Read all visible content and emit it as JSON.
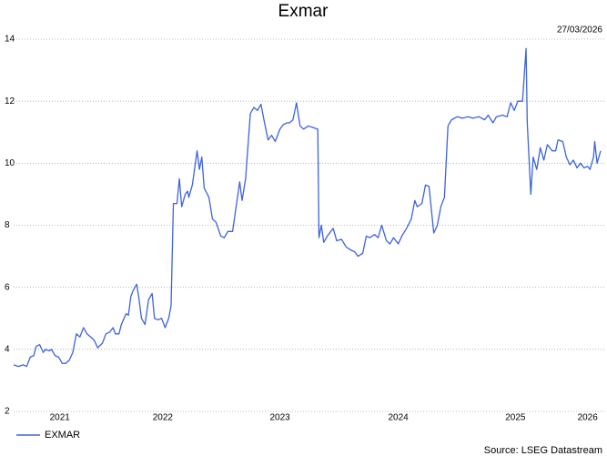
{
  "chart_data": {
    "type": "line",
    "title": "Exmar",
    "date": "27/03/2026",
    "source": "Source: LSEG Datastream",
    "x": [
      2021.27,
      2021.31,
      2021.35,
      2021.38,
      2021.41,
      2021.44,
      2021.46,
      2021.49,
      2021.52,
      2021.54,
      2021.57,
      2021.59,
      2021.62,
      2021.65,
      2021.68,
      2021.71,
      2021.74,
      2021.77,
      2021.8,
      2021.83,
      2021.86,
      2021.89,
      2021.92,
      2021.95,
      2021.98,
      2022.02,
      2022.05,
      2022.08,
      2022.11,
      2022.13,
      2022.16,
      2022.18,
      2022.22,
      2022.24,
      2022.26,
      2022.28,
      2022.31,
      2022.33,
      2022.35,
      2022.38,
      2022.41,
      2022.44,
      2022.46,
      2022.49,
      2022.52,
      2022.55,
      2022.58,
      2022.6,
      2022.62,
      2022.65,
      2022.67,
      2022.69,
      2022.72,
      2022.74,
      2022.75,
      2022.78,
      2022.82,
      2022.84,
      2022.86,
      2022.88,
      2022.92,
      2022.95,
      2022.98,
      2023.02,
      2023.05,
      2023.08,
      2023.12,
      2023.18,
      2023.2,
      2023.23,
      2023.27,
      2023.3,
      2023.33,
      2023.36,
      2023.39,
      2023.42,
      2023.45,
      2023.48,
      2023.52,
      2023.55,
      2023.58,
      2023.6,
      2023.63,
      2023.66,
      2023.69,
      2023.72,
      2023.76,
      2023.8,
      2023.84,
      2023.85,
      2023.87,
      2023.89,
      2023.92,
      2023.97,
      2024.0,
      2024.04,
      2024.08,
      2024.12,
      2024.15,
      2024.18,
      2024.22,
      2024.25,
      2024.28,
      2024.32,
      2024.35,
      2024.38,
      2024.42,
      2024.45,
      2024.48,
      2024.52,
      2024.55,
      2024.59,
      2024.63,
      2024.66,
      2024.68,
      2024.72,
      2024.75,
      2024.78,
      2024.82,
      2024.85,
      2024.88,
      2024.91,
      2024.94,
      2024.97,
      2025.02,
      2025.06,
      2025.11,
      2025.15,
      2025.2,
      2025.25,
      2025.28,
      2025.32,
      2025.35,
      2025.4,
      2025.44,
      2025.47,
      2025.5,
      2025.53,
      2025.57,
      2025.6,
      2025.61,
      2025.64,
      2025.66,
      2025.69,
      2025.72,
      2025.75,
      2025.78,
      2025.82,
      2025.85,
      2025.87,
      2025.91,
      2025.94,
      2025.97,
      2026.0,
      2026.03,
      2026.06,
      2026.09,
      2026.12,
      2026.14,
      2026.17,
      2026.18,
      2026.2,
      2026.23
    ],
    "series": [
      {
        "name": "EXMAR",
        "color": "#3d63dd",
        "values": [
          3.5,
          3.45,
          3.5,
          3.45,
          3.75,
          3.8,
          4.1,
          4.15,
          3.9,
          4.0,
          3.95,
          4.0,
          3.8,
          3.75,
          3.55,
          3.55,
          3.65,
          3.9,
          4.5,
          4.4,
          4.7,
          4.5,
          4.4,
          4.3,
          4.05,
          4.2,
          4.5,
          4.55,
          4.7,
          4.5,
          4.5,
          4.8,
          5.15,
          5.1,
          5.7,
          5.9,
          6.1,
          5.6,
          5.0,
          4.8,
          5.6,
          5.8,
          5.0,
          4.95,
          5.0,
          4.7,
          5.0,
          5.4,
          8.7,
          8.7,
          9.5,
          8.6,
          9.0,
          9.1,
          8.9,
          9.3,
          10.4,
          9.8,
          10.2,
          9.2,
          8.9,
          8.2,
          8.1,
          7.65,
          7.6,
          7.8,
          7.8,
          9.4,
          8.8,
          9.5,
          11.6,
          11.8,
          11.7,
          11.9,
          11.3,
          10.75,
          10.9,
          10.7,
          11.1,
          11.25,
          11.3,
          11.3,
          11.4,
          11.95,
          11.2,
          11.1,
          11.2,
          11.15,
          11.1,
          7.6,
          8.0,
          7.45,
          7.65,
          7.9,
          7.5,
          7.55,
          7.3,
          7.2,
          7.15,
          7.0,
          7.1,
          7.65,
          7.6,
          7.7,
          7.6,
          8.0,
          7.5,
          7.4,
          7.6,
          7.4,
          7.65,
          7.9,
          8.2,
          8.8,
          8.6,
          8.7,
          9.3,
          9.25,
          7.75,
          8.0,
          8.6,
          8.9,
          11.2,
          11.4,
          11.5,
          11.45,
          11.5,
          11.45,
          11.5,
          11.4,
          11.55,
          11.3,
          11.5,
          11.55,
          11.5,
          11.95,
          11.7,
          12.0,
          12.0,
          13.7,
          11.3,
          9.0,
          10.2,
          9.8,
          10.5,
          10.1,
          10.6,
          10.4,
          10.4,
          10.75,
          10.7,
          10.2,
          9.95,
          10.1,
          9.85,
          10.0,
          9.85,
          9.9,
          9.8,
          10.2,
          10.7,
          10.0,
          10.4
        ]
      }
    ],
    "xlim": [
      2021.27,
      2026.23
    ],
    "xticks": [
      {
        "value": 2021.66,
        "label": "2021"
      },
      {
        "value": 2022.53,
        "label": "2022"
      },
      {
        "value": 2023.52,
        "label": "2023"
      },
      {
        "value": 2024.52,
        "label": "2024"
      },
      {
        "value": 2025.51,
        "label": "2025"
      },
      {
        "value": 2026.12,
        "label": "2026"
      }
    ],
    "ylim": [
      2,
      14
    ],
    "yticks": [
      2,
      4,
      6,
      8,
      10,
      12,
      14
    ],
    "grid": true
  }
}
